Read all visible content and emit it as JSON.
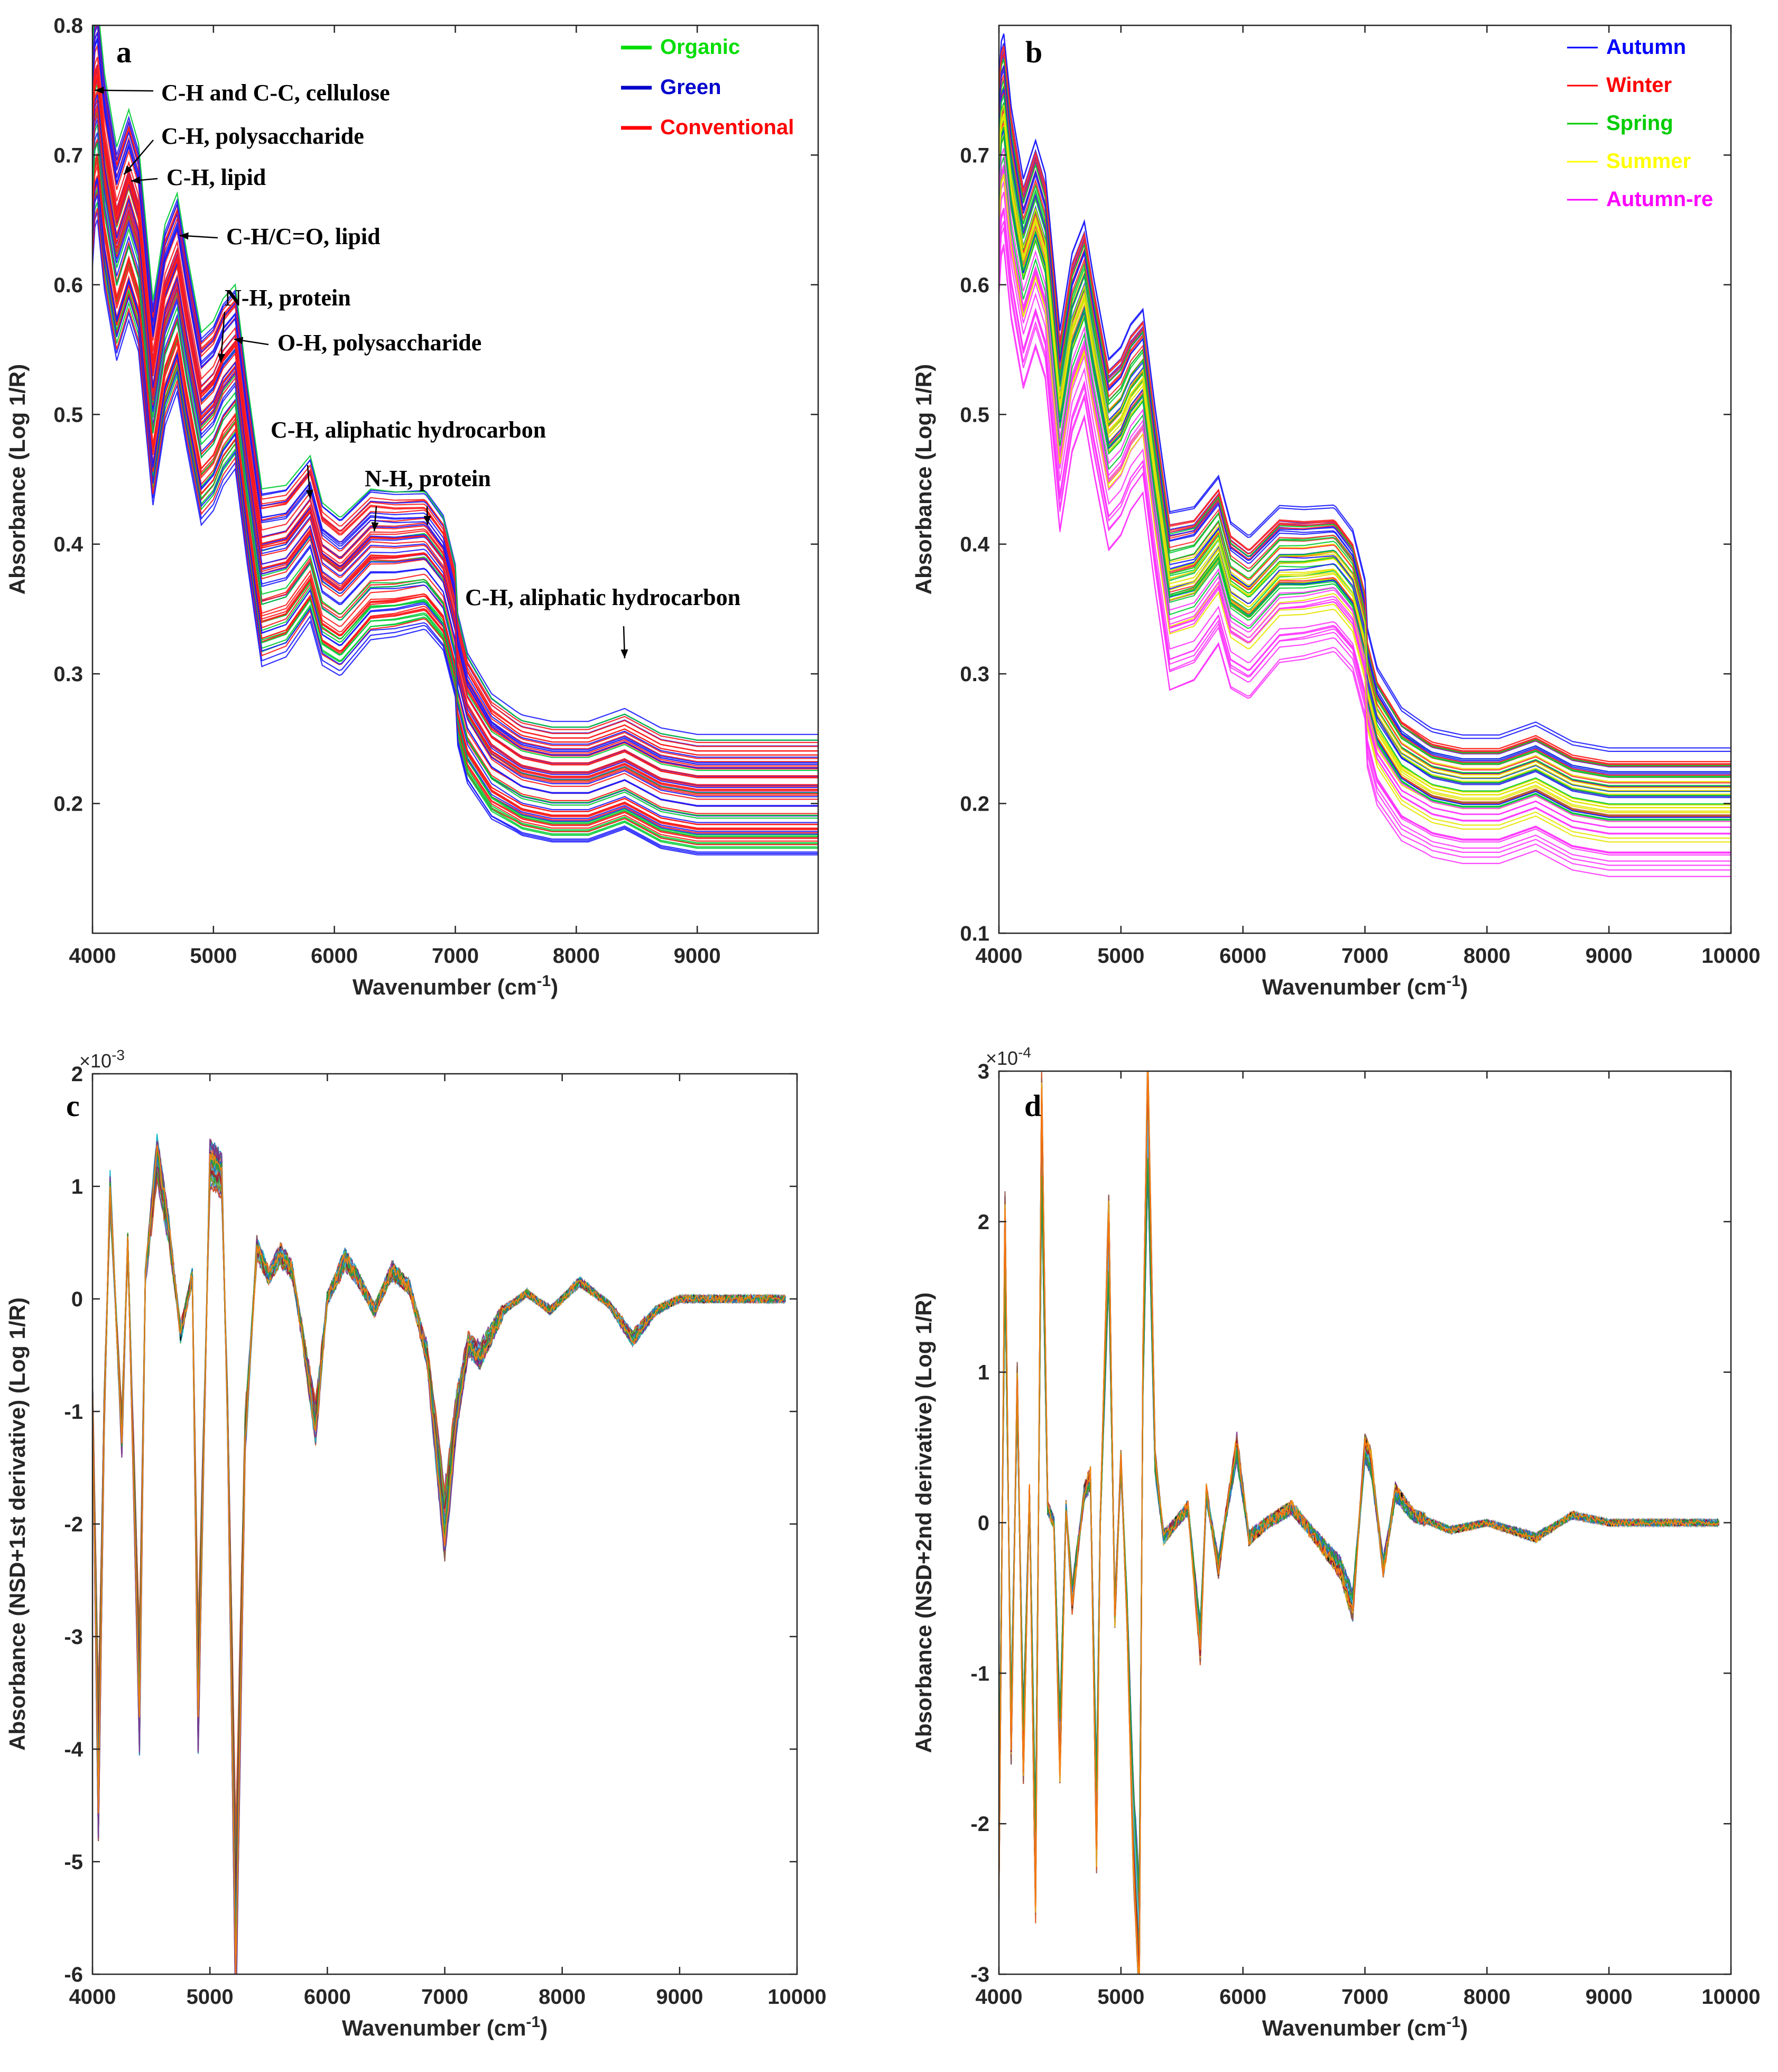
{
  "chart_data": [
    {
      "panel": "a",
      "type": "line",
      "xlabel": "Wavenumber (cm",
      "xlabel_sup": "-1",
      "xlabel_end": ")",
      "ylabel": "Absorbance (Log 1/R)",
      "xlim": [
        4000,
        10000
      ],
      "ylim": [
        0.1,
        0.8
      ],
      "xticks": [
        "4000",
        "5000",
        "6000",
        "7000",
        "8000",
        "9000"
      ],
      "yticks": [
        "0.2",
        "0.3",
        "0.4",
        "0.5",
        "0.6",
        "0.7",
        "0.8"
      ],
      "legend_position": "top-right",
      "legend": [
        {
          "name": "Organic",
          "color": "#00dd00"
        },
        {
          "name": "Green",
          "color": "#0000cc"
        },
        {
          "name": "Conventional",
          "color": "#ff0000"
        }
      ],
      "series_template": {
        "x": [
          4000,
          4030,
          4100,
          4200,
          4300,
          4380,
          4500,
          4600,
          4700,
          4780,
          4900,
          5000,
          5080,
          5180,
          5280,
          5400,
          5600,
          5800,
          5900,
          6050,
          6300,
          6500,
          6750,
          6900,
          7100,
          7300,
          7550,
          7800,
          8100,
          8400,
          8700,
          9000,
          10000
        ],
        "y": [
          0.72,
          0.765,
          0.7,
          0.645,
          0.675,
          0.65,
          0.53,
          0.59,
          0.615,
          0.57,
          0.51,
          0.52,
          0.538,
          0.55,
          0.475,
          0.395,
          0.4,
          0.425,
          0.39,
          0.38,
          0.405,
          0.405,
          0.408,
          0.39,
          0.315,
          0.285,
          0.27,
          0.265,
          0.265,
          0.275,
          0.26,
          0.255,
          0.255
        ]
      },
      "series_count": 70,
      "annotations": [
        {
          "text": "C-H and C-C, cellulose",
          "x": 4020,
          "y": 0.75
        },
        {
          "text": "C-H, polysaccharide",
          "x": 4260,
          "y": 0.685
        },
        {
          "text": "C-H, lipid",
          "x": 4320,
          "y": 0.68
        },
        {
          "text": "C-H/C=O, lipid",
          "x": 4720,
          "y": 0.638
        },
        {
          "text": "N-H, protein",
          "x": 5060,
          "y": 0.54
        },
        {
          "text": "O-H, polysaccharide",
          "x": 5170,
          "y": 0.558
        },
        {
          "text": "C-H, aliphatic hydrocarbon",
          "x": 5800,
          "y": 0.435
        },
        {
          "text": "N-H, protein",
          "x": 6330,
          "y": 0.41
        },
        {
          "text": "",
          "x": 6770,
          "y": 0.415
        },
        {
          "text": "C-H, aliphatic hydrocarbon",
          "x": 8400,
          "y": 0.312
        }
      ]
    },
    {
      "panel": "b",
      "type": "line",
      "xlabel": "Wavenumber (cm",
      "xlabel_sup": "-1",
      "xlabel_end": ")",
      "ylabel": "Absorbance (Log 1/R)",
      "xlim": [
        4000,
        10000
      ],
      "ylim": [
        0.1,
        0.8
      ],
      "xticks": [
        "4000",
        "5000",
        "6000",
        "7000",
        "8000",
        "9000",
        "10000"
      ],
      "yticks": [
        "0.1",
        "0.2",
        "0.3",
        "0.4",
        "0.5",
        "0.6",
        "0.7"
      ],
      "legend_position": "top-right",
      "legend": [
        {
          "name": "Autumn",
          "color": "#0000ff"
        },
        {
          "name": "Winter",
          "color": "#ff0000"
        },
        {
          "name": "Spring",
          "color": "#00cc00"
        },
        {
          "name": "Summer",
          "color": "#ffff00"
        },
        {
          "name": "Autumn-re",
          "color": "#ff00ff"
        }
      ],
      "series_count": 70
    },
    {
      "panel": "c",
      "type": "line",
      "xlabel": "Wavenumber (cm",
      "xlabel_sup": "-1",
      "xlabel_end": ")",
      "ylabel": "Absorbance (NSD+1st derivative) (Log 1/R)",
      "y_multiplier": "×10",
      "y_multiplier_exp": "-3",
      "xlim": [
        4000,
        10000
      ],
      "ylim": [
        -6,
        2
      ],
      "xticks": [
        "4000",
        "5000",
        "6000",
        "7000",
        "8000",
        "9000",
        "10000"
      ],
      "yticks": [
        "-6",
        "-5",
        "-4",
        "-3",
        "-2",
        "-1",
        "0",
        "1",
        "2"
      ],
      "series_template": {
        "x": [
          4000,
          4050,
          4100,
          4150,
          4250,
          4300,
          4400,
          4450,
          4550,
          4650,
          4750,
          4850,
          4900,
          5000,
          5100,
          5150,
          5220,
          5300,
          5400,
          5500,
          5600,
          5700,
          5800,
          5900,
          6000,
          6150,
          6250,
          6400,
          6550,
          6700,
          6850,
          7000,
          7100,
          7200,
          7300,
          7500,
          7700,
          7900,
          8150,
          8400,
          8600,
          8800,
          9000,
          9500,
          9900
        ],
        "y": [
          -0.8,
          -4.2,
          -1.0,
          0.95,
          -1.2,
          0.5,
          -3.5,
          0.2,
          1.25,
          0.6,
          -0.3,
          0.2,
          -3.5,
          1.2,
          1.1,
          -1.0,
          -5.6,
          -1.2,
          0.45,
          0.2,
          0.4,
          0.25,
          -0.4,
          -1.1,
          0.0,
          0.35,
          0.2,
          -0.1,
          0.25,
          0.1,
          -0.5,
          -2.0,
          -1.0,
          -0.4,
          -0.5,
          -0.1,
          0.05,
          -0.1,
          0.15,
          -0.05,
          -0.35,
          -0.1,
          0.0,
          0.0,
          0.0
        ]
      },
      "series_count": 70
    },
    {
      "panel": "d",
      "type": "line",
      "xlabel": "Wavenumber (cm",
      "xlabel_sup": "-1",
      "xlabel_end": ")",
      "ylabel": "Absorbance (NSD+2nd derivative) (Log 1/R)",
      "y_multiplier": "×10",
      "y_multiplier_exp": "-4",
      "xlim": [
        4000,
        10000
      ],
      "ylim": [
        -3,
        3
      ],
      "xticks": [
        "4000",
        "5000",
        "6000",
        "7000",
        "8000",
        "9000",
        "10000"
      ],
      "yticks": [
        "-3",
        "-2",
        "-1",
        "0",
        "1",
        "2",
        "3"
      ],
      "series_template": {
        "x": [
          4000,
          4050,
          4100,
          4150,
          4200,
          4250,
          4300,
          4350,
          4400,
          4450,
          4500,
          4550,
          4600,
          4700,
          4750,
          4800,
          4830,
          4900,
          4950,
          5000,
          5050,
          5100,
          5150,
          5180,
          5220,
          5280,
          5350,
          5450,
          5550,
          5650,
          5700,
          5800,
          5850,
          5950,
          6050,
          6200,
          6400,
          6550,
          6800,
          6900,
          7000,
          7050,
          7150,
          7250,
          7400,
          7700,
          8000,
          8400,
          8700,
          9000,
          9900
        ],
        "y": [
          -2.2,
          1.9,
          -1.4,
          0.9,
          -1.5,
          0.2,
          -2.3,
          2.6,
          0.1,
          0.0,
          -1.5,
          0.1,
          -0.5,
          0.2,
          0.3,
          -2.0,
          0.0,
          1.9,
          -0.6,
          0.4,
          -0.6,
          -2.0,
          -2.8,
          1.0,
          2.75,
          0.4,
          -0.1,
          0.0,
          0.1,
          -0.8,
          0.2,
          -0.3,
          0.0,
          0.5,
          -0.1,
          0.0,
          0.1,
          -0.05,
          -0.3,
          -0.55,
          0.5,
          0.4,
          -0.3,
          0.2,
          0.05,
          -0.05,
          0.0,
          -0.1,
          0.05,
          0.0,
          0.0
        ]
      },
      "series_count": 70
    }
  ]
}
